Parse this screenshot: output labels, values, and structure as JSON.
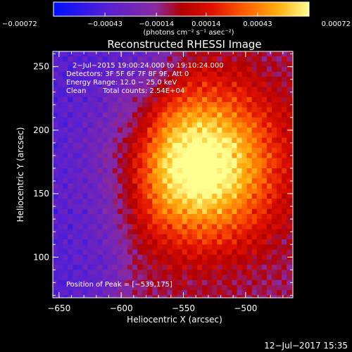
{
  "chart_data": {
    "type": "heatmap",
    "title": "Reconstructed RHESSI Image",
    "xlabel": "Heliocentric X (arcsec)",
    "ylabel": "Heliocentric Y (arcsec)",
    "xlim": [
      -655,
      -462
    ],
    "ylim": [
      68,
      262
    ],
    "x_ticks": [
      -650,
      -600,
      -550,
      -500
    ],
    "x_tick_labels": [
      "−650",
      "−600",
      "−550",
      "−500"
    ],
    "y_ticks": [
      100,
      150,
      200,
      250
    ],
    "y_tick_labels": [
      "100",
      "150",
      "200",
      "250"
    ],
    "colorbar": {
      "range": [
        -0.00072,
        0.00072
      ],
      "ticks": [
        -0.00072,
        -0.00043,
        -0.00014,
        0.00014,
        0.00043,
        0.00072
      ],
      "tick_labels": [
        "−0.00072",
        "−0.00043",
        "−0.00014",
        "0.00014",
        "0.00043",
        "0.00072"
      ],
      "units": "(photons cm⁻² s⁻¹ asec⁻²)"
    },
    "annotations": {
      "time": "2−Jul−2015 19:00:24.000 to 19:10:24.000",
      "detectors": "Detectors: 3F 5F 6F 7F 8F 9F, Att 0",
      "energy": "Energy Range: 12.0 − 25.0 keV",
      "clean": "Clean",
      "counts": "Total counts: 2.54E+04",
      "peak": "Position of Peak = [−539,175]"
    },
    "peak": {
      "x": -539,
      "y": 175
    },
    "grid": false,
    "colors": {
      "background": "#000000",
      "text": "#ffffff"
    }
  },
  "footer": {
    "timestamp": "12−Jul−2017 15:35"
  }
}
